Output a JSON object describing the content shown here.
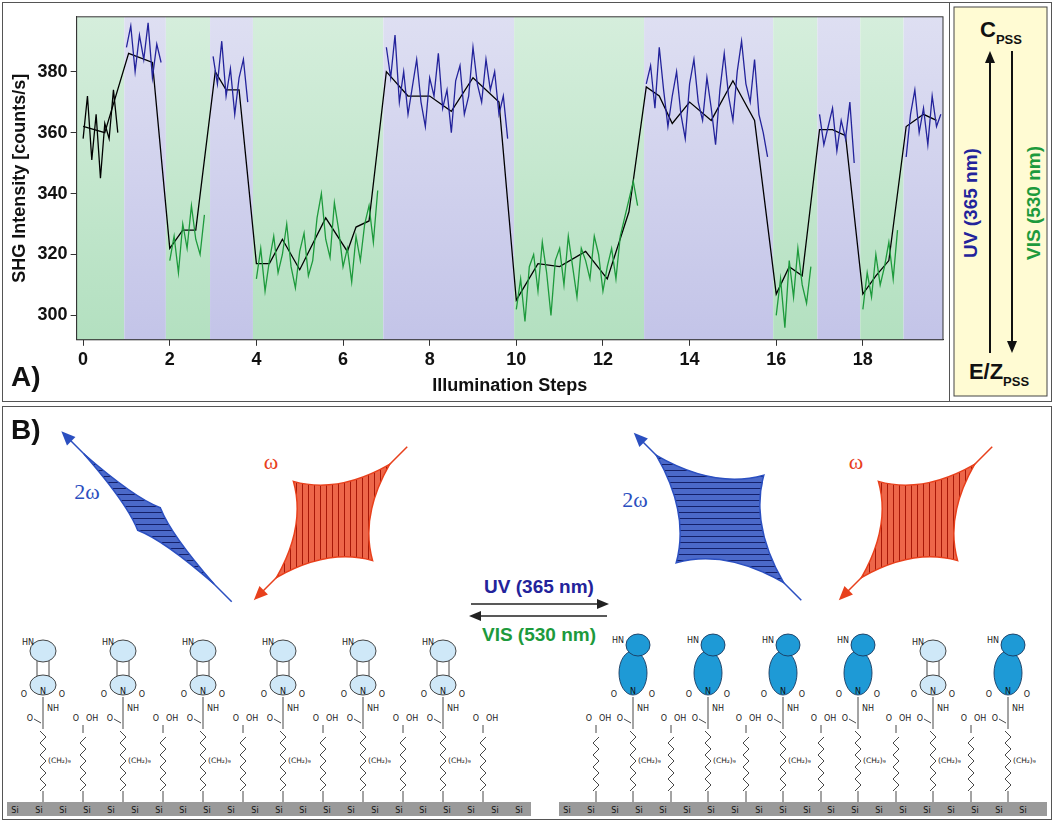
{
  "chart_data": {
    "type": "line",
    "x_label": "Illumination Steps",
    "y_label": "SHG Intensity [counts/s]",
    "xlim": [
      -0.15,
      19.85
    ],
    "ylim": [
      292,
      398
    ],
    "xticks": [
      0,
      2,
      4,
      6,
      8,
      10,
      12,
      14,
      16,
      18
    ],
    "yticks": [
      300,
      320,
      340,
      360,
      380
    ],
    "grid": false,
    "bands": [
      {
        "start": -0.15,
        "end": 0.95,
        "color": "#b3e0c0"
      },
      {
        "start": 0.95,
        "end": 1.91,
        "color": "#c3c4e8"
      },
      {
        "start": 1.91,
        "end": 2.93,
        "color": "#b3e0c0"
      },
      {
        "start": 2.93,
        "end": 3.92,
        "color": "#c3c4e8"
      },
      {
        "start": 3.92,
        "end": 6.93,
        "color": "#b3e0c0"
      },
      {
        "start": 6.93,
        "end": 9.95,
        "color": "#c3c4e8"
      },
      {
        "start": 9.95,
        "end": 12.95,
        "color": "#b3e0c0"
      },
      {
        "start": 12.95,
        "end": 15.93,
        "color": "#c3c4e8"
      },
      {
        "start": 15.93,
        "end": 16.95,
        "color": "#b3e0c0"
      },
      {
        "start": 16.95,
        "end": 17.94,
        "color": "#c3c4e8"
      },
      {
        "start": 17.94,
        "end": 18.94,
        "color": "#b3e0c0"
      },
      {
        "start": 18.94,
        "end": 19.85,
        "color": "#c3c4e8"
      }
    ],
    "series": [
      {
        "color": "#000000",
        "x": [
          0.0,
          0.1,
          0.2,
          0.3,
          0.4,
          0.5,
          0.6,
          0.7,
          0.8
        ],
        "values": [
          358,
          372,
          351,
          366,
          345,
          363,
          358,
          374,
          360
        ]
      },
      {
        "color": "#23239b",
        "x": [
          1.0,
          1.1,
          1.2,
          1.3,
          1.4,
          1.5,
          1.6,
          1.7,
          1.8
        ],
        "values": [
          388,
          395,
          380,
          392,
          384,
          396,
          378,
          389,
          383
        ]
      },
      {
        "color": "#1d9a3c",
        "x": [
          2.0,
          2.1,
          2.2,
          2.3,
          2.4,
          2.5,
          2.6,
          2.7,
          2.8
        ],
        "values": [
          318,
          326,
          314,
          330,
          322,
          336,
          325,
          320,
          333
        ]
      },
      {
        "color": "#23239b",
        "x": [
          3.0,
          3.1,
          3.2,
          3.3,
          3.4,
          3.5,
          3.6,
          3.7,
          3.8
        ],
        "values": [
          385,
          376,
          390,
          372,
          381,
          366,
          378,
          384,
          370
        ]
      },
      {
        "color": "#1d9a3c",
        "x": [
          4.0,
          4.1,
          4.2,
          4.3,
          4.4,
          4.5,
          4.6,
          4.7,
          4.8,
          4.9,
          5.0,
          5.1,
          5.2,
          5.3,
          5.4,
          5.5,
          5.6,
          5.7,
          5.8,
          5.9,
          6.0,
          6.1,
          6.2,
          6.3,
          6.4,
          6.5,
          6.6,
          6.7,
          6.8
        ],
        "values": [
          312,
          322,
          308,
          318,
          326,
          314,
          320,
          330,
          316,
          309,
          321,
          327,
          313,
          318,
          332,
          340,
          325,
          319,
          337,
          328,
          316,
          322,
          311,
          326,
          318,
          330,
          336,
          324,
          341
        ]
      },
      {
        "color": "#23239b",
        "x": [
          7.0,
          7.1,
          7.2,
          7.3,
          7.4,
          7.5,
          7.6,
          7.7,
          7.8,
          7.9,
          8.0,
          8.1,
          8.2,
          8.3,
          8.4,
          8.5,
          8.6,
          8.7,
          8.8,
          8.9,
          9.0,
          9.1,
          9.2,
          9.3,
          9.4,
          9.5,
          9.6,
          9.7,
          9.8
        ],
        "values": [
          388,
          378,
          392,
          370,
          380,
          366,
          375,
          384,
          370,
          362,
          378,
          372,
          386,
          368,
          374,
          360,
          377,
          382,
          366,
          372,
          388,
          376,
          370,
          384,
          374,
          380,
          366,
          372,
          358
        ]
      },
      {
        "color": "#1d9a3c",
        "x": [
          10.0,
          10.1,
          10.2,
          10.3,
          10.4,
          10.5,
          10.6,
          10.7,
          10.8,
          10.9,
          11.0,
          11.1,
          11.2,
          11.3,
          11.4,
          11.5,
          11.6,
          11.7,
          11.8,
          11.9,
          12.0,
          12.1,
          12.2,
          12.3,
          12.4,
          12.5,
          12.6,
          12.7,
          12.8
        ],
        "values": [
          302,
          312,
          298,
          316,
          320,
          308,
          324,
          314,
          300,
          318,
          322,
          310,
          326,
          316,
          306,
          322,
          318,
          312,
          326,
          320,
          308,
          316,
          322,
          312,
          326,
          332,
          338,
          344,
          336
        ]
      },
      {
        "color": "#23239b",
        "x": [
          13.0,
          13.1,
          13.2,
          13.3,
          13.4,
          13.5,
          13.6,
          13.7,
          13.8,
          13.9,
          14.0,
          14.1,
          14.2,
          14.3,
          14.4,
          14.5,
          14.6,
          14.7,
          14.8,
          14.9,
          15.0,
          15.1,
          15.2,
          15.3,
          15.4,
          15.5,
          15.6,
          15.7,
          15.8
        ],
        "values": [
          376,
          382,
          368,
          388,
          374,
          362,
          372,
          380,
          366,
          358,
          376,
          384,
          370,
          364,
          378,
          368,
          356,
          374,
          386,
          372,
          364,
          380,
          390,
          376,
          370,
          384,
          366,
          360,
          352
        ]
      },
      {
        "color": "#1d9a3c",
        "x": [
          16.0,
          16.1,
          16.2,
          16.3,
          16.4,
          16.5,
          16.6,
          16.7,
          16.8
        ],
        "values": [
          300,
          312,
          296,
          318,
          306,
          322,
          310,
          304,
          316
        ]
      },
      {
        "color": "#23239b",
        "x": [
          17.0,
          17.1,
          17.2,
          17.3,
          17.4,
          17.5,
          17.6,
          17.7,
          17.8
        ],
        "values": [
          366,
          356,
          362,
          368,
          354,
          364,
          358,
          370,
          350
        ]
      },
      {
        "color": "#1d9a3c",
        "x": [
          18.0,
          18.1,
          18.2,
          18.3,
          18.4,
          18.5,
          18.6,
          18.7,
          18.8
        ],
        "values": [
          302,
          314,
          306,
          320,
          310,
          316,
          324,
          312,
          328
        ]
      },
      {
        "color": "#23239b",
        "x": [
          19.0,
          19.1,
          19.2,
          19.3,
          19.4,
          19.5,
          19.6,
          19.7,
          19.8
        ],
        "values": [
          352,
          366,
          374,
          360,
          368,
          356,
          372,
          362,
          366
        ]
      },
      {
        "color": "#000000",
        "x": [
          0,
          0.5,
          1.05,
          1.6,
          2.0,
          2.3,
          2.6,
          3.05,
          3.3,
          3.6,
          4.0,
          4.3,
          4.6,
          5.0,
          5.6,
          6.1,
          6.3,
          6.6,
          7.0,
          7.5,
          8.0,
          8.5,
          9.0,
          9.6,
          10.0,
          10.5,
          11.0,
          11.6,
          12.1,
          12.6,
          13.0,
          13.3,
          13.6,
          14.0,
          14.5,
          15.0,
          15.5,
          16.0,
          16.3,
          16.6,
          17.0,
          17.3,
          17.6,
          18.0,
          18.3,
          18.6,
          19.0,
          19.4,
          19.7
        ],
        "values": [
          362,
          360,
          386,
          383,
          322,
          328,
          328,
          380,
          374,
          374,
          317,
          317,
          325,
          315,
          332,
          321,
          329,
          331,
          380,
          372,
          372,
          367,
          378,
          370,
          305,
          317,
          316,
          321,
          312,
          334,
          375,
          372,
          363,
          370,
          364,
          377,
          364,
          307,
          316,
          313,
          361,
          361,
          359,
          307,
          313,
          318,
          362,
          366,
          364
        ]
      }
    ]
  },
  "panel_a": {
    "label": "A)",
    "state_box": {
      "top": {
        "text": "C",
        "sub": "PSS"
      },
      "bottom": {
        "text": "E/Z",
        "sub": "PSS"
      },
      "forward": {
        "text": "UV (365 nm)",
        "color": "#23239b"
      },
      "backward": {
        "text": "VIS (530 nm)",
        "color": "#1d9a3c"
      }
    }
  },
  "panel_b": {
    "label": "B)",
    "beams": {
      "harmonic": {
        "label": "2ω",
        "color": "#2b4fc0"
      },
      "fundamental": {
        "label": "ω",
        "color": "#e8401c"
      }
    },
    "switch": {
      "forward": {
        "text": "UV (365 nm)",
        "color": "#23239b"
      },
      "backward": {
        "text": "VIS (530 nm)",
        "color": "#1d9a3c"
      }
    },
    "chem": {
      "indole": "HN",
      "imide": "N",
      "carbonyl": "O",
      "amide": "NH",
      "chain": "(CH₂)₉",
      "acid": "OH",
      "surface": "Si"
    }
  }
}
